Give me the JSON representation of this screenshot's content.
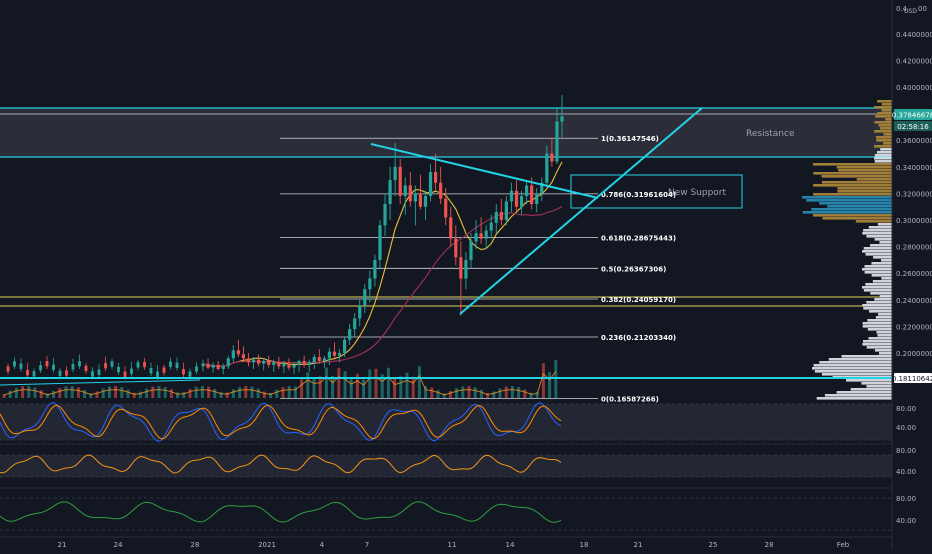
{
  "colors": {
    "background": "#131722",
    "bull": "#26a69a",
    "bear": "#ef5350",
    "cyan": "#22d3e6",
    "white_line": "#d1d4dc",
    "yellow": "#e0d45a",
    "ma_yellow": "#e8c23a",
    "ma_red": "#a3305a",
    "volume_profile_white": "#e6e8ee",
    "volume_profile_blue": "#2a8fb8",
    "volume_profile_gold": "#b08a3a",
    "zone_fill": "rgba(255,255,255,0.10)",
    "price_label_bg": "#26a69a",
    "rsi_orange": "#f7931a",
    "stoch_blue": "#2962ff",
    "stoch_orange": "#ff8c00",
    "green_osc": "#2ea043"
  },
  "price_axis": {
    "currency": "USD",
    "top_partial": "0.4",
    "top_partial2": "00",
    "ticks": [
      "0.44000000",
      "0.42000000",
      "0.40000000",
      "0.36000000",
      "0.34000000",
      "0.32000000",
      "0.30000000",
      "0.28000000",
      "0.26000000",
      "0.24000000",
      "0.22000000",
      "0.20000000"
    ],
    "last_price": "0.37846678",
    "countdown": "02:58:16",
    "level_label": "0.18110642"
  },
  "time_axis": {
    "labels": [
      "21",
      "24",
      "28",
      "2021",
      "4",
      "7",
      "11",
      "14",
      "18",
      "21",
      "25",
      "28",
      "Feb"
    ]
  },
  "annotations": {
    "resistance": "Resistance",
    "new_support": "New Support"
  },
  "fib_levels": [
    {
      "ratio": "1",
      "price": "0.36147546",
      "value": 0.36147546,
      "label": "1(0.36147546)"
    },
    {
      "ratio": "0.786",
      "price": "0.31961604",
      "value": 0.31961604,
      "label": "0.786(0.31961604)"
    },
    {
      "ratio": "0.618",
      "price": "0.28675443",
      "value": 0.28675443,
      "label": "0.618(0.28675443)"
    },
    {
      "ratio": "0.5",
      "price": "0.26367306",
      "value": 0.26367306,
      "label": "0.5(0.26367306)"
    },
    {
      "ratio": "0.382",
      "price": "0.24059170",
      "value": 0.2405917,
      "label": "0.382(0.24059170)"
    },
    {
      "ratio": "0.236",
      "price": "0.21203340",
      "value": 0.2120334,
      "label": "0.236(0.21203340)"
    },
    {
      "ratio": "0",
      "price": "0.16587266",
      "value": 0.16587266,
      "label": "0(0.16587266)"
    }
  ],
  "indicator_axes": {
    "stoch": [
      "80.00",
      "40.00"
    ],
    "rsi": [
      "80.00",
      "40.00"
    ],
    "osc": [
      "80.00",
      "40.00"
    ]
  },
  "chart_data": {
    "type": "candlestick",
    "symbol_currency": "USD",
    "ylim": [
      0.165,
      0.45
    ],
    "x_axis_labels": [
      "21",
      "24",
      "28",
      "2021",
      "4",
      "7",
      "11",
      "14",
      "18",
      "21",
      "25",
      "28",
      "Feb"
    ],
    "horizontal_levels": {
      "resistance_top": 0.3795,
      "resistance_bottom": 0.3465,
      "support_line": 0.1811,
      "yellow_upper": 0.241,
      "yellow_lower": 0.234
    },
    "fib_levels": [
      1,
      0.786,
      0.618,
      0.5,
      0.382,
      0.236,
      0
    ],
    "candles": [
      [
        0.19,
        0.195,
        0.186,
        0.192
      ],
      [
        0.192,
        0.196,
        0.188,
        0.189
      ],
      [
        0.189,
        0.193,
        0.185,
        0.191
      ],
      [
        0.191,
        0.194,
        0.187,
        0.188
      ],
      [
        0.188,
        0.192,
        0.184,
        0.19
      ],
      [
        0.19,
        0.198,
        0.188,
        0.196
      ],
      [
        0.196,
        0.206,
        0.193,
        0.202
      ],
      [
        0.202,
        0.21,
        0.197,
        0.199
      ],
      [
        0.199,
        0.205,
        0.193,
        0.196
      ],
      [
        0.196,
        0.2,
        0.19,
        0.193
      ],
      [
        0.193,
        0.197,
        0.188,
        0.195
      ],
      [
        0.195,
        0.199,
        0.19,
        0.192
      ],
      [
        0.192,
        0.196,
        0.187,
        0.194
      ],
      [
        0.194,
        0.198,
        0.189,
        0.191
      ],
      [
        0.191,
        0.195,
        0.186,
        0.193
      ],
      [
        0.193,
        0.197,
        0.188,
        0.19
      ],
      [
        0.19,
        0.194,
        0.185,
        0.192
      ],
      [
        0.192,
        0.196,
        0.187,
        0.189
      ],
      [
        0.189,
        0.193,
        0.184,
        0.191
      ],
      [
        0.191,
        0.195,
        0.186,
        0.194
      ],
      [
        0.194,
        0.198,
        0.189,
        0.191
      ],
      [
        0.191,
        0.195,
        0.186,
        0.193
      ],
      [
        0.193,
        0.199,
        0.188,
        0.197
      ],
      [
        0.197,
        0.203,
        0.192,
        0.194
      ],
      [
        0.194,
        0.198,
        0.189,
        0.196
      ],
      [
        0.196,
        0.204,
        0.191,
        0.201
      ],
      [
        0.201,
        0.208,
        0.196,
        0.198
      ],
      [
        0.198,
        0.203,
        0.193,
        0.2
      ],
      [
        0.2,
        0.212,
        0.197,
        0.21
      ],
      [
        0.21,
        0.222,
        0.206,
        0.218
      ],
      [
        0.218,
        0.23,
        0.212,
        0.226
      ],
      [
        0.226,
        0.24,
        0.22,
        0.236
      ],
      [
        0.236,
        0.252,
        0.23,
        0.248
      ],
      [
        0.248,
        0.262,
        0.238,
        0.256
      ],
      [
        0.256,
        0.274,
        0.25,
        0.27
      ],
      [
        0.27,
        0.3,
        0.264,
        0.296
      ],
      [
        0.296,
        0.32,
        0.288,
        0.312
      ],
      [
        0.312,
        0.34,
        0.3,
        0.33
      ],
      [
        0.33,
        0.358,
        0.318,
        0.34
      ],
      [
        0.34,
        0.346,
        0.312,
        0.318
      ],
      [
        0.318,
        0.332,
        0.304,
        0.326
      ],
      [
        0.326,
        0.336,
        0.31,
        0.314
      ],
      [
        0.314,
        0.326,
        0.296,
        0.32
      ],
      [
        0.32,
        0.334,
        0.308,
        0.31
      ],
      [
        0.31,
        0.322,
        0.3,
        0.318
      ],
      [
        0.318,
        0.342,
        0.314,
        0.336
      ],
      [
        0.336,
        0.35,
        0.322,
        0.328
      ],
      [
        0.328,
        0.34,
        0.312,
        0.316
      ],
      [
        0.316,
        0.324,
        0.296,
        0.302
      ],
      [
        0.302,
        0.31,
        0.28,
        0.286
      ],
      [
        0.286,
        0.296,
        0.266,
        0.272
      ],
      [
        0.272,
        0.284,
        0.228,
        0.256
      ],
      [
        0.256,
        0.276,
        0.248,
        0.27
      ],
      [
        0.27,
        0.29,
        0.264,
        0.284
      ],
      [
        0.284,
        0.3,
        0.278,
        0.29
      ],
      [
        0.29,
        0.302,
        0.282,
        0.286
      ],
      [
        0.286,
        0.296,
        0.278,
        0.292
      ],
      [
        0.292,
        0.304,
        0.286,
        0.298
      ],
      [
        0.298,
        0.312,
        0.29,
        0.306
      ],
      [
        0.306,
        0.316,
        0.296,
        0.3
      ],
      [
        0.3,
        0.318,
        0.296,
        0.314
      ],
      [
        0.314,
        0.328,
        0.306,
        0.322
      ],
      [
        0.322,
        0.33,
        0.306,
        0.31
      ],
      [
        0.31,
        0.322,
        0.304,
        0.318
      ],
      [
        0.318,
        0.33,
        0.312,
        0.326
      ],
      [
        0.326,
        0.332,
        0.308,
        0.312
      ],
      [
        0.312,
        0.324,
        0.306,
        0.32
      ],
      [
        0.32,
        0.332,
        0.314,
        0.328
      ],
      [
        0.328,
        0.356,
        0.326,
        0.35
      ],
      [
        0.35,
        0.362,
        0.34,
        0.344
      ],
      [
        0.344,
        0.384,
        0.342,
        0.374
      ],
      [
        0.374,
        0.394,
        0.362,
        0.378
      ]
    ]
  }
}
